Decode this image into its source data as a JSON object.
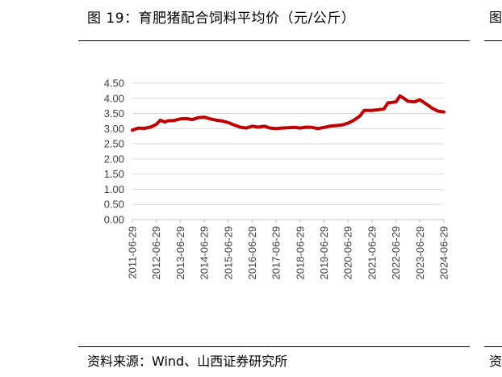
{
  "figure": {
    "title": "图 19：育肥猪配合饲料平均价（元/公斤）",
    "source": "资料来源：Wind、山西证券研究所"
  },
  "chart_data": {
    "type": "line",
    "title": "",
    "xlabel": "",
    "ylabel": "",
    "ylim": [
      0,
      4.5
    ],
    "yticks": [
      "0.00",
      "0.50",
      "1.00",
      "1.50",
      "2.00",
      "2.50",
      "3.00",
      "3.50",
      "4.00",
      "4.50"
    ],
    "xticks": [
      "2011-06-29",
      "2012-06-29",
      "2013-06-29",
      "2014-06-29",
      "2015-06-29",
      "2016-06-29",
      "2017-06-29",
      "2018-06-29",
      "2019-06-29",
      "2020-06-29",
      "2021-06-29",
      "2022-06-29",
      "2023-06-29",
      "2024-06-29"
    ],
    "grid": true,
    "legend": "none",
    "series": [
      {
        "color": "#c00000",
        "points": [
          [
            "2011-06-29",
            2.95
          ],
          [
            "2011-09-29",
            3.02
          ],
          [
            "2011-12-29",
            3.01
          ],
          [
            "2012-03-29",
            3.05
          ],
          [
            "2012-06-29",
            3.14
          ],
          [
            "2012-08-29",
            3.28
          ],
          [
            "2012-10-29",
            3.22
          ],
          [
            "2012-12-29",
            3.26
          ],
          [
            "2013-03-29",
            3.27
          ],
          [
            "2013-06-29",
            3.32
          ],
          [
            "2013-09-29",
            3.33
          ],
          [
            "2013-12-29",
            3.3
          ],
          [
            "2014-03-29",
            3.36
          ],
          [
            "2014-06-29",
            3.38
          ],
          [
            "2014-09-29",
            3.32
          ],
          [
            "2014-12-29",
            3.28
          ],
          [
            "2015-03-29",
            3.25
          ],
          [
            "2015-06-29",
            3.2
          ],
          [
            "2015-09-29",
            3.12
          ],
          [
            "2015-12-29",
            3.05
          ],
          [
            "2016-03-29",
            3.02
          ],
          [
            "2016-06-29",
            3.08
          ],
          [
            "2016-09-29",
            3.05
          ],
          [
            "2016-12-29",
            3.08
          ],
          [
            "2017-03-29",
            3.02
          ],
          [
            "2017-06-29",
            3.0
          ],
          [
            "2017-09-29",
            3.02
          ],
          [
            "2017-12-29",
            3.03
          ],
          [
            "2018-03-29",
            3.04
          ],
          [
            "2018-06-29",
            3.02
          ],
          [
            "2018-09-29",
            3.05
          ],
          [
            "2018-12-29",
            3.04
          ],
          [
            "2019-03-29",
            3.0
          ],
          [
            "2019-06-29",
            3.04
          ],
          [
            "2019-09-29",
            3.08
          ],
          [
            "2019-12-29",
            3.1
          ],
          [
            "2020-03-29",
            3.12
          ],
          [
            "2020-06-29",
            3.18
          ],
          [
            "2020-09-29",
            3.28
          ],
          [
            "2020-12-29",
            3.42
          ],
          [
            "2021-02-28",
            3.6
          ],
          [
            "2021-06-29",
            3.6
          ],
          [
            "2021-09-29",
            3.62
          ],
          [
            "2021-12-29",
            3.65
          ],
          [
            "2022-02-28",
            3.85
          ],
          [
            "2022-06-29",
            3.88
          ],
          [
            "2022-08-29",
            4.08
          ],
          [
            "2022-10-29",
            4.0
          ],
          [
            "2022-12-29",
            3.9
          ],
          [
            "2023-03-29",
            3.88
          ],
          [
            "2023-06-29",
            3.95
          ],
          [
            "2023-09-29",
            3.82
          ],
          [
            "2023-12-29",
            3.68
          ],
          [
            "2024-03-29",
            3.58
          ],
          [
            "2024-06-29",
            3.55
          ]
        ]
      }
    ]
  }
}
